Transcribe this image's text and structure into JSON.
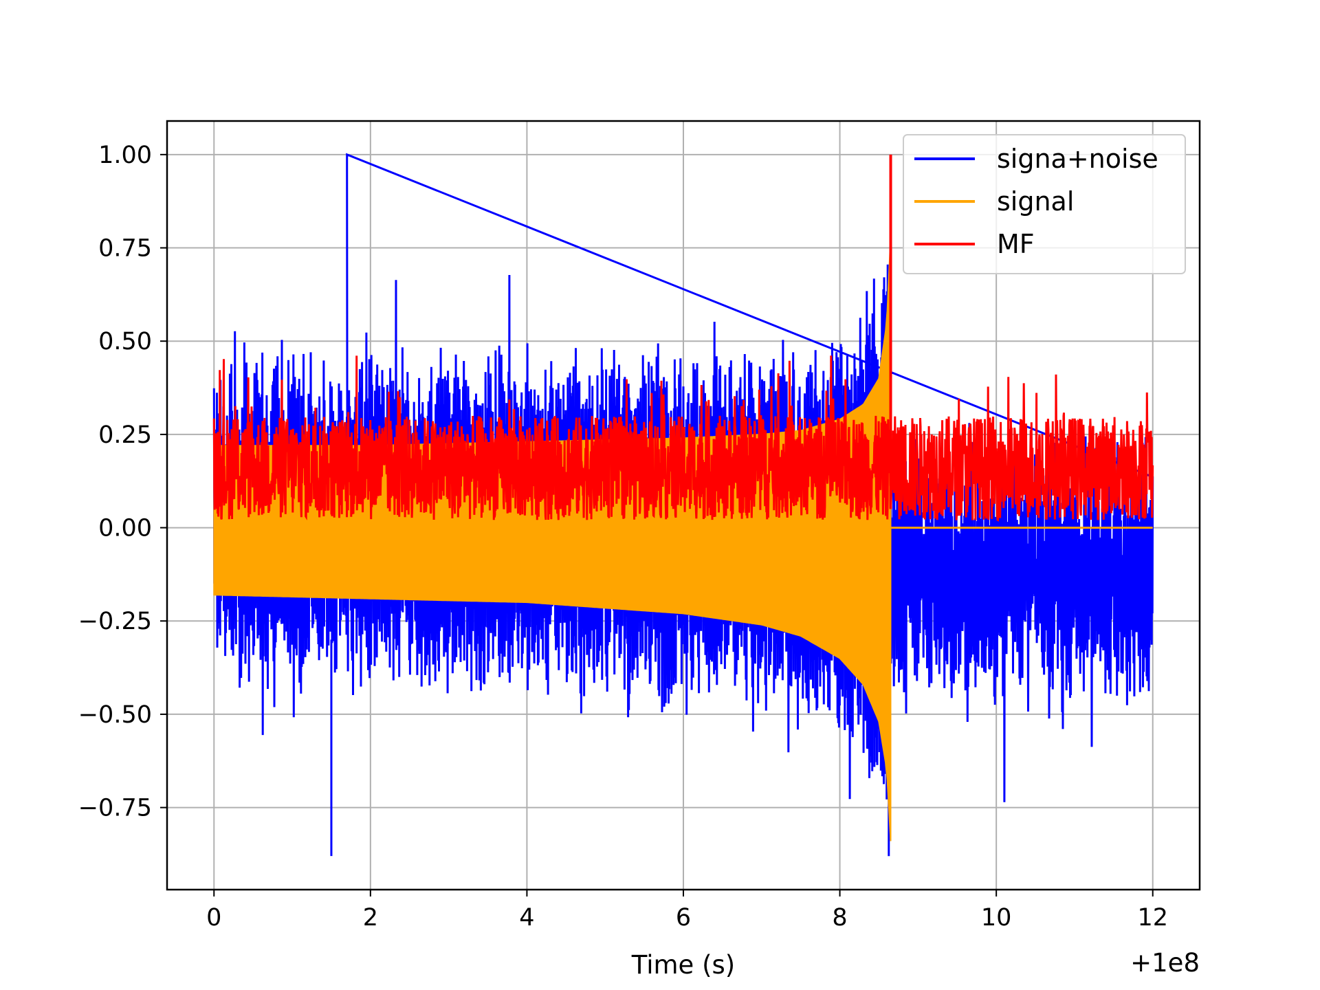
{
  "chart_data": {
    "type": "line",
    "title": "",
    "xlabel": "Time (s)",
    "ylabel": "",
    "x_offset_label": "+1e8",
    "xlim": [
      -0.6,
      12.6
    ],
    "ylim": [
      -0.97,
      1.09
    ],
    "xticks": [
      0,
      2,
      4,
      6,
      8,
      10,
      12
    ],
    "xtick_labels": [
      "0",
      "2",
      "4",
      "6",
      "8",
      "10",
      "12"
    ],
    "yticks": [
      -0.75,
      -0.5,
      -0.25,
      0.0,
      0.25,
      0.5,
      0.75,
      1.0
    ],
    "ytick_labels": [
      "−0.75",
      "−0.50",
      "−0.25",
      "0.00",
      "0.25",
      "0.50",
      "0.75",
      "1.00"
    ],
    "grid": true,
    "legend_position": "top-right",
    "merger_time": 8.65,
    "series": [
      {
        "name": "signa+noise",
        "color": "#0000ff",
        "x_range": [
          0,
          12
        ],
        "peak_max": 1.0,
        "peak_max_x": 1.7,
        "peak_min": -0.88,
        "peak_min_x": 1.5,
        "typical_range": [
          -0.55,
          0.6
        ]
      },
      {
        "name": "signal",
        "color": "#ffa500",
        "x_range": [
          0,
          12
        ],
        "envelope_x": [
          0,
          2,
          4,
          6,
          7,
          7.5,
          8,
          8.3,
          8.5,
          8.6,
          8.65
        ],
        "envelope_upper": [
          0.22,
          0.22,
          0.23,
          0.24,
          0.25,
          0.26,
          0.29,
          0.33,
          0.4,
          0.55,
          0.78
        ],
        "envelope_lower": [
          -0.18,
          -0.19,
          -0.2,
          -0.23,
          -0.26,
          -0.29,
          -0.35,
          -0.42,
          -0.52,
          -0.65,
          -0.84
        ],
        "post_merger_value": 0.0
      },
      {
        "name": "MF",
        "color": "#ff0000",
        "x_range": [
          0,
          12
        ],
        "baseline_range": [
          0.02,
          0.3
        ],
        "peak": 1.0,
        "peak_x": 8.65
      }
    ]
  }
}
